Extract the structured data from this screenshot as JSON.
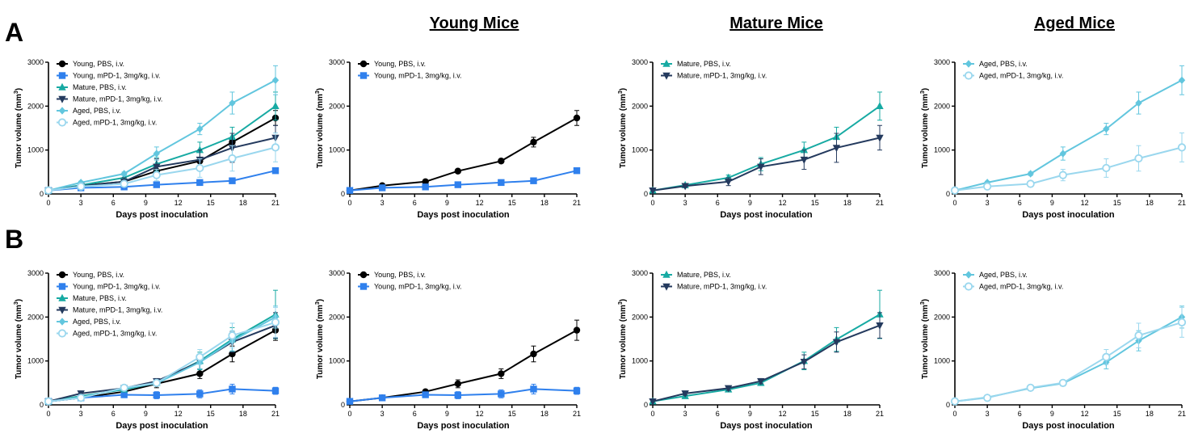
{
  "panel_labels": [
    "A",
    "B"
  ],
  "column_titles": [
    "Young Mice",
    "Mature Mice",
    "Aged Mice"
  ],
  "colors": {
    "young_pbs": "#000000",
    "young_mpd1": "#2f80ed",
    "mature_pbs": "#17aaa3",
    "mature_mpd1": "#243a5e",
    "aged_pbs": "#62c6de",
    "aged_mpd1": "#9ad7ee"
  },
  "chart_data": [
    {
      "type": "line",
      "row": "A",
      "panel": "combined",
      "xlabel": "Days post inoculation",
      "ylabel": "Tumor volume (mm3)",
      "xlim": [
        0,
        21
      ],
      "ylim": [
        0,
        3000
      ],
      "xticks": [
        0,
        3,
        6,
        9,
        12,
        15,
        18,
        21
      ],
      "yticks": [
        0,
        1000,
        2000,
        3000
      ],
      "legend_position": "top-left",
      "series": [
        {
          "name": "Young, PBS, i.v.",
          "color": "#000000",
          "marker": "circle",
          "x": [
            0,
            3,
            7,
            10,
            14,
            17,
            21
          ],
          "y": [
            80,
            190,
            280,
            520,
            750,
            1180,
            1730
          ],
          "err": [
            20,
            30,
            40,
            40,
            40,
            110,
            170
          ]
        },
        {
          "name": "Young, mPD-1, 3mg/kg, i.v.",
          "color": "#2f80ed",
          "marker": "square",
          "x": [
            0,
            3,
            7,
            10,
            14,
            17,
            21
          ],
          "y": [
            80,
            140,
            160,
            210,
            260,
            300,
            530
          ],
          "err": [
            20,
            20,
            20,
            30,
            30,
            30,
            60
          ]
        },
        {
          "name": "Mature, PBS, i.v.",
          "color": "#17aaa3",
          "marker": "triangle-up",
          "x": [
            0,
            3,
            7,
            10,
            14,
            17,
            21
          ],
          "y": [
            80,
            200,
            370,
            680,
            1000,
            1300,
            2000
          ],
          "err": [
            20,
            30,
            60,
            150,
            180,
            220,
            320
          ]
        },
        {
          "name": "Mature, mPD-1, 3mg/kg, i.v.",
          "color": "#243a5e",
          "marker": "triangle-down",
          "x": [
            0,
            3,
            7,
            10,
            14,
            17,
            21
          ],
          "y": [
            80,
            180,
            280,
            620,
            780,
            1050,
            1280
          ],
          "err": [
            20,
            30,
            90,
            180,
            220,
            330,
            280
          ]
        },
        {
          "name": "Aged, PBS, i.v.",
          "color": "#62c6de",
          "marker": "diamond",
          "x": [
            0,
            3,
            7,
            10,
            14,
            17,
            21
          ],
          "y": [
            80,
            260,
            460,
            920,
            1480,
            2070,
            2590
          ],
          "err": [
            20,
            30,
            40,
            150,
            130,
            250,
            330
          ]
        },
        {
          "name": "Aged, mPD-1, 3mg/kg, i.v.",
          "color": "#9ad7ee",
          "marker": "circle-open",
          "x": [
            0,
            3,
            7,
            10,
            14,
            17,
            21
          ],
          "y": [
            80,
            170,
            230,
            430,
            590,
            810,
            1060
          ],
          "err": [
            20,
            30,
            40,
            130,
            210,
            290,
            330
          ]
        }
      ]
    },
    {
      "type": "line",
      "row": "A",
      "panel": "Young Mice",
      "xlabel": "Days post inoculation",
      "ylabel": "Tumor volume (mm3)",
      "xlim": [
        0,
        21
      ],
      "ylim": [
        0,
        3000
      ],
      "xticks": [
        0,
        3,
        6,
        9,
        12,
        15,
        18,
        21
      ],
      "yticks": [
        0,
        1000,
        2000,
        3000
      ],
      "legend_position": "top-left",
      "series": [
        {
          "name": "Young, PBS, i.v.",
          "color": "#000000",
          "marker": "circle",
          "x": [
            0,
            3,
            7,
            10,
            14,
            17,
            21
          ],
          "y": [
            80,
            190,
            280,
            520,
            750,
            1180,
            1730
          ],
          "err": [
            20,
            30,
            40,
            40,
            40,
            110,
            170
          ]
        },
        {
          "name": "Young, mPD-1, 3mg/kg, i.v.",
          "color": "#2f80ed",
          "marker": "square",
          "x": [
            0,
            3,
            7,
            10,
            14,
            17,
            21
          ],
          "y": [
            80,
            140,
            160,
            210,
            260,
            300,
            530
          ],
          "err": [
            20,
            20,
            20,
            30,
            30,
            30,
            60
          ]
        }
      ]
    },
    {
      "type": "line",
      "row": "A",
      "panel": "Mature Mice",
      "xlabel": "Days post inoculation",
      "ylabel": "Tumor volume (mm3)",
      "xlim": [
        0,
        21
      ],
      "ylim": [
        0,
        3000
      ],
      "xticks": [
        0,
        3,
        6,
        9,
        12,
        15,
        18,
        21
      ],
      "yticks": [
        0,
        1000,
        2000,
        3000
      ],
      "legend_position": "top-left",
      "series": [
        {
          "name": "Mature, PBS, i.v.",
          "color": "#17aaa3",
          "marker": "triangle-up",
          "x": [
            0,
            3,
            7,
            10,
            14,
            17,
            21
          ],
          "y": [
            80,
            200,
            370,
            680,
            1000,
            1300,
            2000
          ],
          "err": [
            20,
            30,
            60,
            150,
            180,
            220,
            320
          ]
        },
        {
          "name": "Mature, mPD-1, 3mg/kg, i.v.",
          "color": "#243a5e",
          "marker": "triangle-down",
          "x": [
            0,
            3,
            7,
            10,
            14,
            17,
            21
          ],
          "y": [
            80,
            180,
            280,
            620,
            780,
            1050,
            1280
          ],
          "err": [
            20,
            30,
            90,
            180,
            220,
            330,
            280
          ]
        }
      ]
    },
    {
      "type": "line",
      "row": "A",
      "panel": "Aged Mice",
      "xlabel": "Days post inoculation",
      "ylabel": "Tumor volume (mm3)",
      "xlim": [
        0,
        21
      ],
      "ylim": [
        0,
        3000
      ],
      "xticks": [
        0,
        3,
        6,
        9,
        12,
        15,
        18,
        21
      ],
      "yticks": [
        0,
        1000,
        2000,
        3000
      ],
      "legend_position": "top-left",
      "series": [
        {
          "name": "Aged, PBS, i.v.",
          "color": "#62c6de",
          "marker": "diamond",
          "x": [
            0,
            3,
            7,
            10,
            14,
            17,
            21
          ],
          "y": [
            80,
            260,
            460,
            920,
            1480,
            2070,
            2590
          ],
          "err": [
            20,
            30,
            40,
            150,
            130,
            250,
            330
          ]
        },
        {
          "name": "Aged, mPD-1, 3mg/kg, i.v.",
          "color": "#9ad7ee",
          "marker": "circle-open",
          "x": [
            0,
            3,
            7,
            10,
            14,
            17,
            21
          ],
          "y": [
            80,
            170,
            230,
            430,
            590,
            810,
            1060
          ],
          "err": [
            20,
            30,
            40,
            130,
            210,
            290,
            330
          ]
        }
      ]
    },
    {
      "type": "line",
      "row": "B",
      "panel": "combined",
      "xlabel": "Days post inoculation",
      "ylabel": "Tumor volume (mm3)",
      "xlim": [
        0,
        21
      ],
      "ylim": [
        0,
        3000
      ],
      "xticks": [
        0,
        3,
        6,
        9,
        12,
        15,
        18,
        21
      ],
      "yticks": [
        0,
        1000,
        2000,
        3000
      ],
      "legend_position": "top-left",
      "series": [
        {
          "name": "Young, PBS, i.v.",
          "color": "#000000",
          "marker": "circle",
          "x": [
            0,
            3,
            7,
            10,
            14,
            17,
            21
          ],
          "y": [
            80,
            160,
            300,
            480,
            710,
            1160,
            1700
          ],
          "err": [
            20,
            30,
            30,
            90,
            110,
            180,
            230
          ]
        },
        {
          "name": "Young, mPD-1, 3mg/kg, i.v.",
          "color": "#2f80ed",
          "marker": "square",
          "x": [
            0,
            3,
            7,
            10,
            14,
            17,
            21
          ],
          "y": [
            80,
            160,
            230,
            220,
            250,
            360,
            320
          ],
          "err": [
            20,
            30,
            50,
            80,
            90,
            110,
            80
          ]
        },
        {
          "name": "Mature, PBS, i.v.",
          "color": "#17aaa3",
          "marker": "triangle-up",
          "x": [
            0,
            3,
            7,
            10,
            14,
            17,
            21
          ],
          "y": [
            80,
            200,
            350,
            500,
            1000,
            1490,
            2060
          ],
          "err": [
            20,
            30,
            50,
            60,
            200,
            270,
            550
          ]
        },
        {
          "name": "Mature, mPD-1, 3mg/kg, i.v.",
          "color": "#243a5e",
          "marker": "triangle-down",
          "x": [
            0,
            3,
            7,
            10,
            14,
            17,
            21
          ],
          "y": [
            80,
            260,
            380,
            540,
            980,
            1430,
            1810
          ],
          "err": [
            20,
            40,
            50,
            60,
            160,
            230,
            290
          ]
        },
        {
          "name": "Aged, PBS, i.v.",
          "color": "#62c6de",
          "marker": "diamond",
          "x": [
            0,
            3,
            7,
            10,
            14,
            17,
            21
          ],
          "y": [
            80,
            170,
            380,
            490,
            970,
            1460,
            2000
          ],
          "err": [
            20,
            30,
            40,
            60,
            150,
            230,
            250
          ]
        },
        {
          "name": "Aged, mPD-1, 3mg/kg, i.v.",
          "color": "#9ad7ee",
          "marker": "circle-open",
          "x": [
            0,
            3,
            7,
            10,
            14,
            17,
            21
          ],
          "y": [
            80,
            160,
            390,
            500,
            1090,
            1580,
            1880
          ],
          "err": [
            20,
            30,
            40,
            60,
            170,
            280,
            340
          ]
        }
      ]
    },
    {
      "type": "line",
      "row": "B",
      "panel": "Young Mice",
      "xlabel": "Days post inoculation",
      "ylabel": "Tumor volume (mm3)",
      "xlim": [
        0,
        21
      ],
      "ylim": [
        0,
        3000
      ],
      "xticks": [
        0,
        3,
        6,
        9,
        12,
        15,
        18,
        21
      ],
      "yticks": [
        0,
        1000,
        2000,
        3000
      ],
      "legend_position": "top-left",
      "series": [
        {
          "name": "Young, PBS, i.v.",
          "color": "#000000",
          "marker": "circle",
          "x": [
            0,
            3,
            7,
            10,
            14,
            17,
            21
          ],
          "y": [
            80,
            160,
            300,
            480,
            710,
            1160,
            1700
          ],
          "err": [
            20,
            30,
            30,
            90,
            110,
            180,
            230
          ]
        },
        {
          "name": "Young, mPD-1, 3mg/kg, i.v.",
          "color": "#2f80ed",
          "marker": "square",
          "x": [
            0,
            3,
            7,
            10,
            14,
            17,
            21
          ],
          "y": [
            80,
            160,
            230,
            220,
            250,
            360,
            320
          ],
          "err": [
            20,
            30,
            50,
            80,
            90,
            110,
            80
          ]
        }
      ]
    },
    {
      "type": "line",
      "row": "B",
      "panel": "Mature Mice",
      "xlabel": "Days post inoculation",
      "ylabel": "Tumor volume (mm3)",
      "xlim": [
        0,
        21
      ],
      "ylim": [
        0,
        3000
      ],
      "xticks": [
        0,
        3,
        6,
        9,
        12,
        15,
        18,
        21
      ],
      "yticks": [
        0,
        1000,
        2000,
        3000
      ],
      "legend_position": "top-left",
      "series": [
        {
          "name": "Mature, PBS, i.v.",
          "color": "#17aaa3",
          "marker": "triangle-up",
          "x": [
            0,
            3,
            7,
            10,
            14,
            17,
            21
          ],
          "y": [
            80,
            200,
            350,
            500,
            1000,
            1490,
            2060
          ],
          "err": [
            20,
            30,
            50,
            60,
            200,
            270,
            550
          ]
        },
        {
          "name": "Mature, mPD-1, 3mg/kg, i.v.",
          "color": "#243a5e",
          "marker": "triangle-down",
          "x": [
            0,
            3,
            7,
            10,
            14,
            17,
            21
          ],
          "y": [
            80,
            260,
            380,
            540,
            980,
            1430,
            1810
          ],
          "err": [
            20,
            40,
            50,
            60,
            160,
            230,
            290
          ]
        }
      ]
    },
    {
      "type": "line",
      "row": "B",
      "panel": "Aged Mice",
      "xlabel": "Days post inoculation",
      "ylabel": "Tumor volume (mm3)",
      "xlim": [
        0,
        21
      ],
      "ylim": [
        0,
        3000
      ],
      "xticks": [
        0,
        3,
        6,
        9,
        12,
        15,
        18,
        21
      ],
      "yticks": [
        0,
        1000,
        2000,
        3000
      ],
      "legend_position": "top-left",
      "series": [
        {
          "name": "Aged, PBS, i.v.",
          "color": "#62c6de",
          "marker": "diamond",
          "x": [
            0,
            3,
            7,
            10,
            14,
            17,
            21
          ],
          "y": [
            80,
            170,
            380,
            490,
            970,
            1460,
            2000
          ],
          "err": [
            20,
            30,
            40,
            60,
            150,
            230,
            250
          ]
        },
        {
          "name": "Aged, mPD-1, 3mg/kg, i.v.",
          "color": "#9ad7ee",
          "marker": "circle-open",
          "x": [
            0,
            3,
            7,
            10,
            14,
            17,
            21
          ],
          "y": [
            80,
            160,
            390,
            500,
            1090,
            1580,
            1880
          ],
          "err": [
            20,
            30,
            40,
            60,
            170,
            280,
            340
          ]
        }
      ]
    }
  ]
}
